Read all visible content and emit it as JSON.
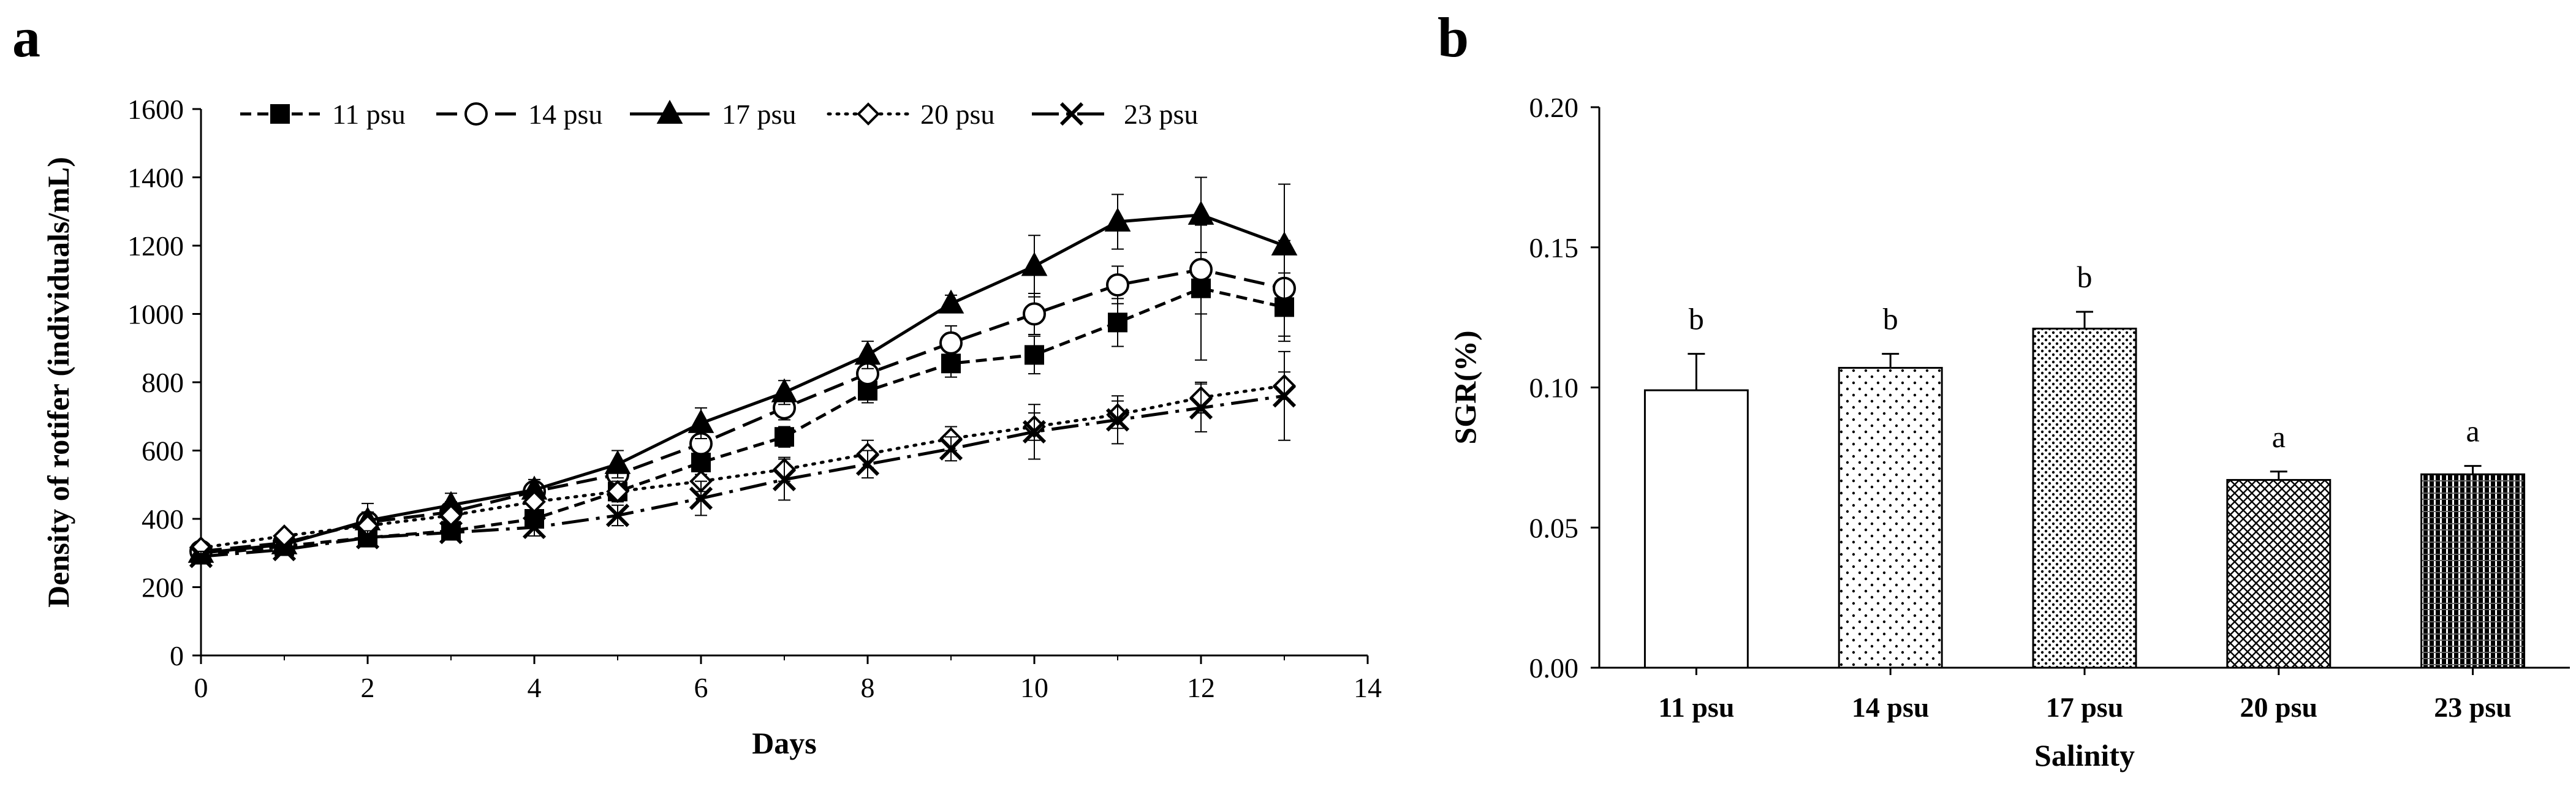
{
  "chart_data": [
    {
      "panel": "a",
      "type": "line",
      "title": "",
      "xlabel": "Days",
      "ylabel": "Density of rotifer (individuals/mL)",
      "xlim": [
        0,
        14
      ],
      "ylim": [
        0,
        1600
      ],
      "xticks": [
        0,
        2,
        4,
        6,
        8,
        10,
        12,
        14
      ],
      "yticks": [
        0,
        200,
        400,
        600,
        800,
        1000,
        1200,
        1400,
        1600
      ],
      "grid": false,
      "legend_position": "top",
      "x": [
        0,
        1,
        2,
        3,
        4,
        5,
        6,
        7,
        8,
        9,
        10,
        11,
        12,
        13
      ],
      "series": [
        {
          "name": "11 psu",
          "marker": "square-filled",
          "dash": "short-dash",
          "values": [
            295,
            320,
            345,
            365,
            400,
            480,
            565,
            640,
            775,
            855,
            880,
            975,
            1075,
            1020
          ],
          "errors": [
            15,
            15,
            20,
            20,
            25,
            30,
            35,
            30,
            35,
            40,
            55,
            70,
            210,
            100
          ]
        },
        {
          "name": "14 psu",
          "marker": "circle-open",
          "dash": "long-dash",
          "values": [
            305,
            330,
            390,
            420,
            480,
            530,
            620,
            725,
            825,
            915,
            1000,
            1085,
            1130,
            1075
          ],
          "errors": [
            15,
            20,
            30,
            30,
            35,
            30,
            40,
            35,
            40,
            50,
            60,
            55,
            130,
            140
          ]
        },
        {
          "name": "17 psu",
          "marker": "triangle-filled",
          "dash": "solid",
          "values": [
            300,
            325,
            395,
            440,
            485,
            560,
            680,
            770,
            880,
            1030,
            1140,
            1270,
            1290,
            1200
          ],
          "errors": [
            15,
            20,
            50,
            35,
            30,
            40,
            45,
            35,
            40,
            25,
            90,
            80,
            110,
            180
          ]
        },
        {
          "name": "20 psu",
          "marker": "diamond-open",
          "dash": "dotted",
          "values": [
            315,
            350,
            380,
            410,
            450,
            480,
            510,
            545,
            590,
            635,
            670,
            705,
            755,
            790
          ],
          "errors": [
            15,
            15,
            20,
            20,
            25,
            30,
            30,
            35,
            40,
            35,
            40,
            40,
            45,
            40
          ]
        },
        {
          "name": "23 psu",
          "marker": "x",
          "dash": "long-dash-dot",
          "values": [
            290,
            310,
            345,
            360,
            375,
            410,
            460,
            515,
            560,
            605,
            655,
            690,
            725,
            760
          ],
          "errors": [
            15,
            15,
            20,
            20,
            25,
            30,
            50,
            60,
            40,
            35,
            80,
            70,
            70,
            130
          ]
        }
      ]
    },
    {
      "panel": "b",
      "type": "bar",
      "title": "",
      "xlabel": "Salinity",
      "ylabel": "SGR(%)",
      "ylim": [
        0,
        0.2
      ],
      "yticks": [
        "0.00",
        "0.05",
        "0.10",
        "0.15",
        "0.20"
      ],
      "grid": false,
      "categories": [
        "11 psu",
        "14 psu",
        "17 psu",
        "20 psu",
        "23 psu"
      ],
      "values": [
        0.099,
        0.107,
        0.121,
        0.067,
        0.069
      ],
      "errors": [
        0.013,
        0.005,
        0.006,
        0.003,
        0.003
      ],
      "significance": [
        "b",
        "b",
        "b",
        "a",
        "a"
      ],
      "patterns": [
        "none",
        "sparse-dots",
        "dense-dots",
        "crosshatch",
        "vertical-lines"
      ]
    }
  ],
  "colors": {
    "ink": "#000000",
    "background": "#ffffff"
  }
}
